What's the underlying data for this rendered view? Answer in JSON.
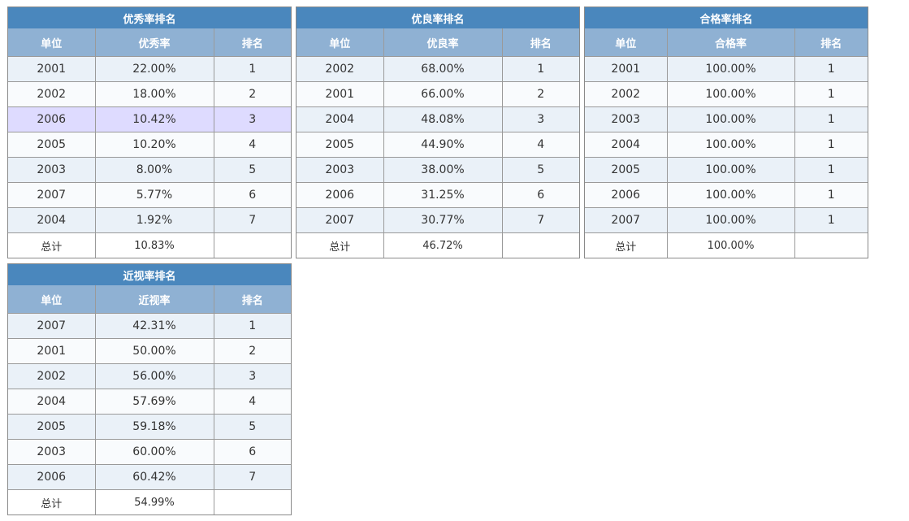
{
  "tables": [
    {
      "title": "优秀率排名",
      "headers": [
        "单位",
        "优秀率",
        "排名"
      ],
      "rows": [
        [
          "2001",
          "22.00%",
          "1"
        ],
        [
          "2002",
          "18.00%",
          "2"
        ],
        [
          "2006",
          "10.42%",
          "3"
        ],
        [
          "2005",
          "10.20%",
          "4"
        ],
        [
          "2003",
          "8.00%",
          "5"
        ],
        [
          "2007",
          "5.77%",
          "6"
        ],
        [
          "2004",
          "1.92%",
          "7"
        ]
      ],
      "total": [
        "总计",
        "10.83%",
        ""
      ],
      "highlight_row": 2
    },
    {
      "title": "优良率排名",
      "headers": [
        "单位",
        "优良率",
        "排名"
      ],
      "rows": [
        [
          "2002",
          "68.00%",
          "1"
        ],
        [
          "2001",
          "66.00%",
          "2"
        ],
        [
          "2004",
          "48.08%",
          "3"
        ],
        [
          "2005",
          "44.90%",
          "4"
        ],
        [
          "2003",
          "38.00%",
          "5"
        ],
        [
          "2006",
          "31.25%",
          "6"
        ],
        [
          "2007",
          "30.77%",
          "7"
        ]
      ],
      "total": [
        "总计",
        "46.72%",
        ""
      ]
    },
    {
      "title": "合格率排名",
      "headers": [
        "单位",
        "合格率",
        "排名"
      ],
      "rows": [
        [
          "2001",
          "100.00%",
          "1"
        ],
        [
          "2002",
          "100.00%",
          "1"
        ],
        [
          "2003",
          "100.00%",
          "1"
        ],
        [
          "2004",
          "100.00%",
          "1"
        ],
        [
          "2005",
          "100.00%",
          "1"
        ],
        [
          "2006",
          "100.00%",
          "1"
        ],
        [
          "2007",
          "100.00%",
          "1"
        ]
      ],
      "total": [
        "总计",
        "100.00%",
        ""
      ]
    },
    {
      "title": "近视率排名",
      "headers": [
        "单位",
        "近视率",
        "排名"
      ],
      "rows": [
        [
          "2007",
          "42.31%",
          "1"
        ],
        [
          "2001",
          "50.00%",
          "2"
        ],
        [
          "2002",
          "56.00%",
          "3"
        ],
        [
          "2004",
          "57.69%",
          "4"
        ],
        [
          "2005",
          "59.18%",
          "5"
        ],
        [
          "2003",
          "60.00%",
          "6"
        ],
        [
          "2006",
          "60.42%",
          "7"
        ]
      ],
      "total": [
        "总计",
        "54.99%",
        ""
      ]
    }
  ],
  "colors": {
    "title_bar": "#4a87bd",
    "header_row": "#8fb1d3",
    "row_even": "#eaf1f8",
    "row_odd": "#f9fbfd",
    "row_highlight": "#dedbff"
  }
}
